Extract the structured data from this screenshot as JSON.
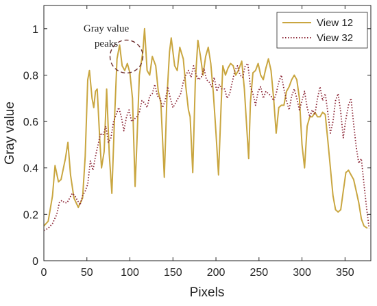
{
  "chart_data": {
    "type": "line",
    "title": "",
    "xlabel": "Pixels",
    "ylabel": "Gray value",
    "xlim": [
      0,
      380
    ],
    "ylim": [
      0,
      1.1
    ],
    "xticks": [
      0,
      50,
      100,
      150,
      200,
      250,
      300,
      350
    ],
    "yticks": [
      0,
      0.2,
      0.4,
      0.6,
      0.8,
      1
    ],
    "xtick_labels": [
      "0",
      "50",
      "100",
      "150",
      "200",
      "250",
      "300",
      "350"
    ],
    "ytick_labels": [
      "0",
      "0.2",
      "0.4",
      "0.6",
      "0.8",
      "1"
    ],
    "grid": false,
    "legend_position": "top-right",
    "series": [
      {
        "name": "View 12",
        "color": "#C9A640",
        "style": "solid",
        "points": [
          [
            0,
            0.15
          ],
          [
            5,
            0.17
          ],
          [
            10,
            0.28
          ],
          [
            13,
            0.41
          ],
          [
            17,
            0.34
          ],
          [
            20,
            0.35
          ],
          [
            25,
            0.44
          ],
          [
            28,
            0.51
          ],
          [
            31,
            0.37
          ],
          [
            35,
            0.27
          ],
          [
            40,
            0.23
          ],
          [
            45,
            0.27
          ],
          [
            48,
            0.45
          ],
          [
            51,
            0.78
          ],
          [
            53,
            0.82
          ],
          [
            56,
            0.7
          ],
          [
            58,
            0.66
          ],
          [
            60,
            0.73
          ],
          [
            62,
            0.74
          ],
          [
            65,
            0.52
          ],
          [
            67,
            0.4
          ],
          [
            70,
            0.47
          ],
          [
            73,
            0.74
          ],
          [
            76,
            0.46
          ],
          [
            79,
            0.29
          ],
          [
            82,
            0.6
          ],
          [
            85,
            0.87
          ],
          [
            88,
            0.93
          ],
          [
            91,
            0.84
          ],
          [
            94,
            0.82
          ],
          [
            97,
            0.85
          ],
          [
            100,
            0.81
          ],
          [
            103,
            0.7
          ],
          [
            106,
            0.32
          ],
          [
            108,
            0.5
          ],
          [
            111,
            0.8
          ],
          [
            115,
            0.9
          ],
          [
            117,
            1.0
          ],
          [
            120,
            0.82
          ],
          [
            123,
            0.8
          ],
          [
            126,
            0.88
          ],
          [
            130,
            0.84
          ],
          [
            133,
            0.73
          ],
          [
            136,
            0.68
          ],
          [
            140,
            0.36
          ],
          [
            143,
            0.7
          ],
          [
            146,
            0.9
          ],
          [
            148,
            0.96
          ],
          [
            152,
            0.84
          ],
          [
            155,
            0.82
          ],
          [
            158,
            0.92
          ],
          [
            162,
            0.87
          ],
          [
            165,
            0.75
          ],
          [
            168,
            0.65
          ],
          [
            170,
            0.62
          ],
          [
            173,
            0.38
          ],
          [
            176,
            0.77
          ],
          [
            179,
            0.95
          ],
          [
            182,
            0.88
          ],
          [
            185,
            0.8
          ],
          [
            188,
            0.88
          ],
          [
            191,
            0.92
          ],
          [
            194,
            0.85
          ],
          [
            197,
            0.72
          ],
          [
            200,
            0.55
          ],
          [
            203,
            0.37
          ],
          [
            206,
            0.67
          ],
          [
            208,
            0.84
          ],
          [
            211,
            0.8
          ],
          [
            214,
            0.83
          ],
          [
            217,
            0.85
          ],
          [
            220,
            0.84
          ],
          [
            223,
            0.8
          ],
          [
            226,
            0.82
          ],
          [
            230,
            0.86
          ],
          [
            233,
            0.74
          ],
          [
            235,
            0.62
          ],
          [
            238,
            0.44
          ],
          [
            240,
            0.68
          ],
          [
            243,
            0.81
          ],
          [
            246,
            0.82
          ],
          [
            249,
            0.85
          ],
          [
            252,
            0.8
          ],
          [
            255,
            0.78
          ],
          [
            258,
            0.83
          ],
          [
            261,
            0.87
          ],
          [
            264,
            0.82
          ],
          [
            267,
            0.7
          ],
          [
            270,
            0.55
          ],
          [
            273,
            0.66
          ],
          [
            276,
            0.67
          ],
          [
            279,
            0.67
          ],
          [
            282,
            0.73
          ],
          [
            285,
            0.75
          ],
          [
            288,
            0.78
          ],
          [
            291,
            0.8
          ],
          [
            294,
            0.78
          ],
          [
            297,
            0.7
          ],
          [
            300,
            0.5
          ],
          [
            303,
            0.4
          ],
          [
            306,
            0.58
          ],
          [
            309,
            0.62
          ],
          [
            312,
            0.62
          ],
          [
            315,
            0.64
          ],
          [
            318,
            0.62
          ],
          [
            321,
            0.62
          ],
          [
            324,
            0.64
          ],
          [
            327,
            0.63
          ],
          [
            330,
            0.52
          ],
          [
            333,
            0.4
          ],
          [
            336,
            0.28
          ],
          [
            339,
            0.22
          ],
          [
            342,
            0.21
          ],
          [
            345,
            0.22
          ],
          [
            348,
            0.3
          ],
          [
            351,
            0.38
          ],
          [
            354,
            0.39
          ],
          [
            357,
            0.37
          ],
          [
            360,
            0.35
          ],
          [
            363,
            0.3
          ],
          [
            366,
            0.25
          ],
          [
            369,
            0.18
          ],
          [
            372,
            0.15
          ],
          [
            376,
            0.14
          ]
        ]
      },
      {
        "name": "View 32",
        "color": "#8B2535",
        "style": "dotted",
        "points": [
          [
            0,
            0.13
          ],
          [
            5,
            0.14
          ],
          [
            10,
            0.16
          ],
          [
            15,
            0.2
          ],
          [
            18,
            0.25
          ],
          [
            21,
            0.26
          ],
          [
            24,
            0.25
          ],
          [
            27,
            0.25
          ],
          [
            30,
            0.27
          ],
          [
            33,
            0.29
          ],
          [
            36,
            0.28
          ],
          [
            39,
            0.26
          ],
          [
            42,
            0.24
          ],
          [
            45,
            0.28
          ],
          [
            48,
            0.3
          ],
          [
            51,
            0.33
          ],
          [
            54,
            0.43
          ],
          [
            57,
            0.39
          ],
          [
            60,
            0.45
          ],
          [
            63,
            0.5
          ],
          [
            66,
            0.55
          ],
          [
            69,
            0.54
          ],
          [
            72,
            0.58
          ],
          [
            75,
            0.51
          ],
          [
            78,
            0.53
          ],
          [
            81,
            0.6
          ],
          [
            84,
            0.63
          ],
          [
            87,
            0.66
          ],
          [
            90,
            0.62
          ],
          [
            93,
            0.56
          ],
          [
            96,
            0.62
          ],
          [
            99,
            0.65
          ],
          [
            102,
            0.6
          ],
          [
            105,
            0.61
          ],
          [
            108,
            0.62
          ],
          [
            111,
            0.64
          ],
          [
            114,
            0.69
          ],
          [
            117,
            0.68
          ],
          [
            120,
            0.66
          ],
          [
            123,
            0.71
          ],
          [
            126,
            0.72
          ],
          [
            129,
            0.76
          ],
          [
            132,
            0.71
          ],
          [
            135,
            0.7
          ],
          [
            138,
            0.66
          ],
          [
            141,
            0.69
          ],
          [
            144,
            0.75
          ],
          [
            147,
            0.7
          ],
          [
            150,
            0.66
          ],
          [
            153,
            0.68
          ],
          [
            156,
            0.7
          ],
          [
            159,
            0.72
          ],
          [
            162,
            0.77
          ],
          [
            165,
            0.8
          ],
          [
            168,
            0.82
          ],
          [
            171,
            0.79
          ],
          [
            174,
            0.84
          ],
          [
            177,
            0.8
          ],
          [
            180,
            0.78
          ],
          [
            183,
            0.79
          ],
          [
            186,
            0.83
          ],
          [
            189,
            0.78
          ],
          [
            192,
            0.77
          ],
          [
            195,
            0.75
          ],
          [
            198,
            0.79
          ],
          [
            201,
            0.73
          ],
          [
            204,
            0.76
          ],
          [
            207,
            0.74
          ],
          [
            210,
            0.74
          ],
          [
            213,
            0.7
          ],
          [
            216,
            0.72
          ],
          [
            219,
            0.77
          ],
          [
            222,
            0.82
          ],
          [
            225,
            0.84
          ],
          [
            228,
            0.8
          ],
          [
            231,
            0.79
          ],
          [
            234,
            0.84
          ],
          [
            237,
            0.85
          ],
          [
            240,
            0.75
          ],
          [
            243,
            0.72
          ],
          [
            246,
            0.67
          ],
          [
            249,
            0.73
          ],
          [
            252,
            0.75
          ],
          [
            255,
            0.7
          ],
          [
            258,
            0.73
          ],
          [
            261,
            0.72
          ],
          [
            264,
            0.71
          ],
          [
            267,
            0.69
          ],
          [
            270,
            0.72
          ],
          [
            273,
            0.77
          ],
          [
            276,
            0.8
          ],
          [
            279,
            0.74
          ],
          [
            282,
            0.69
          ],
          [
            285,
            0.65
          ],
          [
            288,
            0.71
          ],
          [
            291,
            0.74
          ],
          [
            294,
            0.7
          ],
          [
            297,
            0.65
          ],
          [
            300,
            0.69
          ],
          [
            303,
            0.73
          ],
          [
            306,
            0.66
          ],
          [
            309,
            0.62
          ],
          [
            312,
            0.65
          ],
          [
            315,
            0.63
          ],
          [
            318,
            0.7
          ],
          [
            321,
            0.75
          ],
          [
            324,
            0.69
          ],
          [
            327,
            0.72
          ],
          [
            330,
            0.64
          ],
          [
            333,
            0.55
          ],
          [
            336,
            0.6
          ],
          [
            339,
            0.69
          ],
          [
            342,
            0.72
          ],
          [
            345,
            0.64
          ],
          [
            348,
            0.53
          ],
          [
            351,
            0.61
          ],
          [
            354,
            0.67
          ],
          [
            357,
            0.7
          ],
          [
            360,
            0.59
          ],
          [
            363,
            0.49
          ],
          [
            366,
            0.42
          ],
          [
            369,
            0.44
          ],
          [
            372,
            0.33
          ],
          [
            375,
            0.23
          ],
          [
            378,
            0.14
          ]
        ]
      }
    ],
    "annotations": [
      {
        "text_lines": [
          "Gray value",
          "peaks"
        ],
        "target_x": 96,
        "target_y": 0.88
      }
    ]
  }
}
